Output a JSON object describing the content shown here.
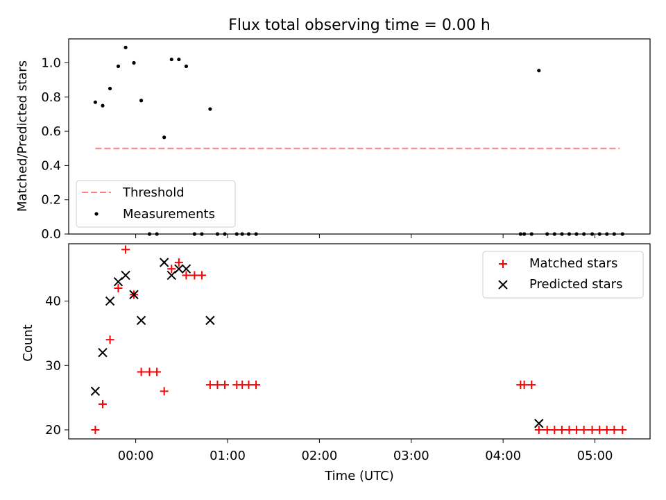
{
  "title": "Flux total observing time = 0.00 h",
  "chart_data": [
    {
      "type": "scatter",
      "panel": "top",
      "title": "Flux total observing time = 0.00 h",
      "xlabel": "",
      "ylabel": "Matched/Predicted stars",
      "xlim": [
        -0.73,
        5.6
      ],
      "ylim": [
        0,
        1.14
      ],
      "x_ticks": [
        0,
        1,
        2,
        3,
        4,
        5
      ],
      "y_ticks": [
        0.0,
        0.2,
        0.4,
        0.6,
        0.8,
        1.0
      ],
      "y_tick_labels": [
        "0.0",
        "0.2",
        "0.4",
        "0.6",
        "0.8",
        "1.0"
      ],
      "legend": {
        "position": "lower-left",
        "entries": [
          "Threshold",
          "Measurements"
        ]
      },
      "threshold": {
        "name": "Threshold",
        "color": "#ff8080",
        "style": "dashed",
        "y": 0.5,
        "x_range": [
          -0.44,
          5.27
        ]
      },
      "series": [
        {
          "name": "Measurements",
          "color": "#000000",
          "marker": "dot",
          "x": [
            -0.44,
            -0.36,
            -0.28,
            -0.19,
            -0.11,
            -0.02,
            0.06,
            0.15,
            0.23,
            0.31,
            0.39,
            0.47,
            0.55,
            0.64,
            0.72,
            0.81,
            0.89,
            0.97,
            1.1,
            1.16,
            1.23,
            1.31,
            4.19,
            4.23,
            4.31,
            4.39,
            4.48,
            4.56,
            4.64,
            4.72,
            4.8,
            4.88,
            4.97,
            5.05,
            5.13,
            5.21,
            5.3
          ],
          "y": [
            0.77,
            0.75,
            0.85,
            0.98,
            1.09,
            1.0,
            0.78,
            0.0,
            0.0,
            0.565,
            1.02,
            1.02,
            0.98,
            0.0,
            0.0,
            0.73,
            0.0,
            0.0,
            0.0,
            0.0,
            0.0,
            0.0,
            0.0,
            0.0,
            0.0,
            0.955,
            0.0,
            0.0,
            0.0,
            0.0,
            0.0,
            0.0,
            0.0,
            0.0,
            0.0,
            0.0,
            0.0
          ]
        }
      ]
    },
    {
      "type": "scatter",
      "panel": "bottom",
      "xlabel": "Time (UTC)",
      "ylabel": "Count",
      "xlim": [
        -0.73,
        5.6
      ],
      "ylim": [
        18.6,
        48.9
      ],
      "x_ticks": [
        0,
        1,
        2,
        3,
        4,
        5
      ],
      "x_tick_labels": [
        "00:00",
        "01:00",
        "02:00",
        "03:00",
        "04:00",
        "05:00"
      ],
      "y_ticks": [
        20,
        30,
        40
      ],
      "y_tick_labels": [
        "20",
        "30",
        "40"
      ],
      "legend": {
        "position": "top-right",
        "entries": [
          "Matched stars",
          "Predicted stars"
        ]
      },
      "series": [
        {
          "name": "Matched stars",
          "color": "#ff0000",
          "marker": "plus",
          "x": [
            -0.44,
            -0.36,
            -0.28,
            -0.19,
            -0.11,
            -0.02,
            0.06,
            0.15,
            0.23,
            0.31,
            0.39,
            0.47,
            0.55,
            0.64,
            0.72,
            0.81,
            0.89,
            0.97,
            1.1,
            1.16,
            1.23,
            1.31,
            4.19,
            4.23,
            4.31,
            4.39,
            4.48,
            4.56,
            4.64,
            4.72,
            4.8,
            4.88,
            4.97,
            5.05,
            5.13,
            5.21,
            5.3
          ],
          "y": [
            20,
            24,
            34,
            42,
            48,
            41,
            29,
            29,
            29,
            26,
            45,
            46,
            44,
            44,
            44,
            27,
            27,
            27,
            27,
            27,
            27,
            27,
            27,
            27,
            27,
            20,
            20,
            20,
            20,
            20,
            20,
            20,
            20,
            20,
            20,
            20,
            20
          ]
        },
        {
          "name": "Predicted stars",
          "color": "#000000",
          "marker": "x",
          "x": [
            -0.44,
            -0.36,
            -0.28,
            -0.19,
            -0.11,
            -0.02,
            0.06,
            0.31,
            0.39,
            0.47,
            0.55,
            0.81,
            4.39
          ],
          "y": [
            26,
            32,
            40,
            43,
            44,
            41,
            37,
            46,
            44,
            45,
            45,
            37,
            21
          ]
        }
      ]
    }
  ]
}
